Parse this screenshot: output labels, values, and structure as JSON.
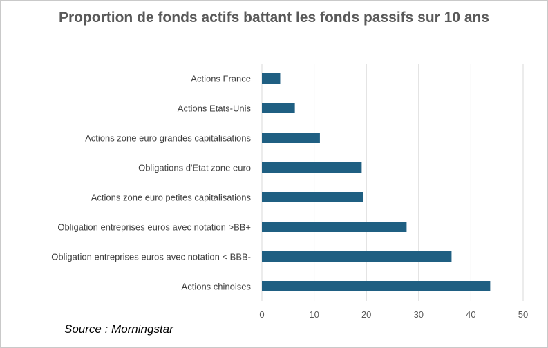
{
  "chart_data": {
    "type": "bar",
    "orientation": "horizontal",
    "title": "Proportion de fonds actifs battant les fonds passifs sur 10 ans",
    "categories": [
      "Actions France",
      "Actions Etats-Unis",
      "Actions zone euro grandes capitalisations",
      "Obligations d'Etat zone euro",
      "Actions zone euro petites capitalisations",
      "Obligation entreprises euros avec notation >BB+",
      "Obligation entreprises euros avec notation < BBB-",
      "Actions chinoises"
    ],
    "values": [
      3.5,
      6.3,
      11.1,
      19.1,
      19.4,
      27.7,
      36.3,
      43.7
    ],
    "xlim": [
      0,
      50
    ],
    "xticks": [
      "0",
      "10",
      "20",
      "30",
      "40",
      "50"
    ],
    "xlabel": "",
    "ylabel": "",
    "grid": "vertical",
    "legend": "none",
    "bar_color": "#1f5f82",
    "grid_color": "#d9d9d9"
  },
  "source": "Source : Morningstar"
}
